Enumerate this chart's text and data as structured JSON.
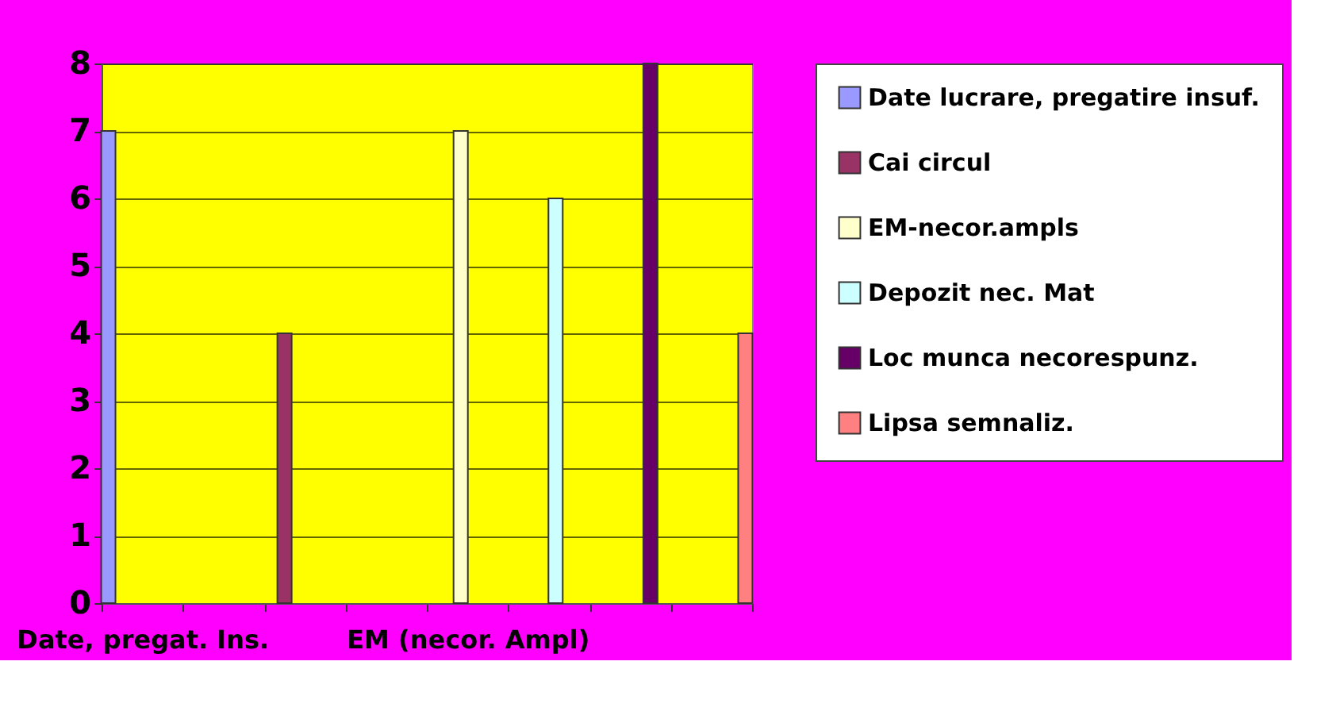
{
  "chart_data": {
    "type": "bar",
    "categories": [
      "Date, pregat. Ins.",
      null,
      null,
      null,
      "EM (necor. Ampl)",
      null,
      null,
      null
    ],
    "series": [
      {
        "name": "Date lucrare, pregatire insuf.",
        "color": "#9999ff",
        "values": [
          7,
          null,
          null,
          null,
          null,
          null,
          null,
          null
        ]
      },
      {
        "name": "Cai circul",
        "color": "#993366",
        "values": [
          null,
          null,
          4,
          null,
          null,
          null,
          null,
          null
        ]
      },
      {
        "name": "EM-necor.ampls",
        "color": "#ffffcc",
        "values": [
          null,
          null,
          null,
          null,
          7,
          null,
          null,
          null
        ]
      },
      {
        "name": "Depozit nec. Mat",
        "color": "#ccffff",
        "values": [
          null,
          null,
          null,
          null,
          null,
          6,
          null,
          null
        ]
      },
      {
        "name": "Loc munca necorespunz.",
        "color": "#660066",
        "values": [
          null,
          null,
          null,
          null,
          null,
          null,
          8,
          null
        ]
      },
      {
        "name": "Lipsa semnaliz.",
        "color": "#ff8080",
        "values": [
          null,
          null,
          null,
          null,
          null,
          null,
          null,
          4
        ]
      }
    ],
    "ylim": [
      0,
      8
    ],
    "yticks": [
      0,
      1,
      2,
      3,
      4,
      5,
      6,
      7,
      8
    ],
    "grid": "y",
    "legend": "right"
  }
}
